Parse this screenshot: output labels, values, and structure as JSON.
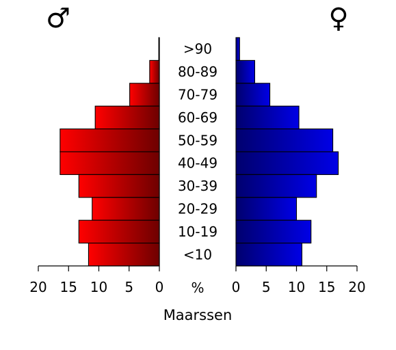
{
  "chart_data": {
    "type": "bar",
    "orientation": "horizontal",
    "layout": "population-pyramid",
    "title": "Maarssen",
    "xlabel": "%",
    "xlim": [
      0,
      20
    ],
    "ticks": [
      "20",
      "15",
      "10",
      "5",
      "0",
      "0",
      "5",
      "10",
      "15",
      "20"
    ],
    "categories": [
      ">90",
      "80-89",
      "70-79",
      "60-69",
      "50-59",
      "40-49",
      "30-39",
      "20-29",
      "10-19",
      "<10"
    ],
    "series": [
      {
        "name": "♂",
        "values": [
          0.1,
          1.6,
          4.9,
          10.6,
          16.4,
          16.4,
          13.3,
          11.1,
          13.3,
          11.7
        ],
        "color": "#ff0000",
        "color_dark": "#6e0000",
        "side": "left"
      },
      {
        "name": "♀",
        "values": [
          0.6,
          3.1,
          5.6,
          10.4,
          16.0,
          16.9,
          13.3,
          10.0,
          12.4,
          10.9
        ],
        "color": "#0000e6",
        "color_dark": "#00006e",
        "side": "right"
      }
    ],
    "grid": false,
    "legend": "none"
  }
}
